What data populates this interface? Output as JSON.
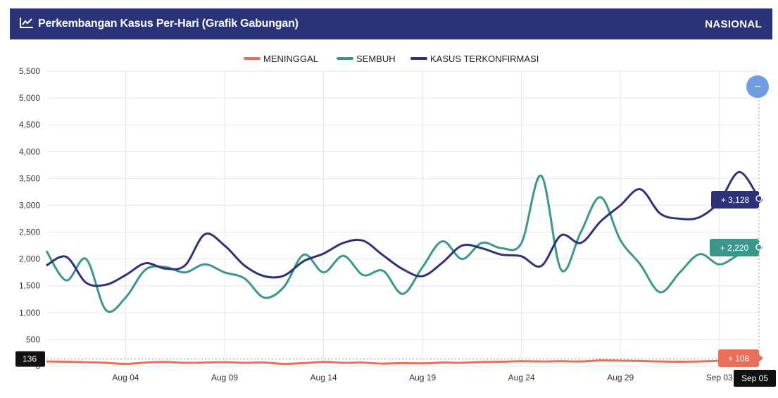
{
  "header": {
    "title": "Perkembangan Kasus Per-Hari (Grafik Gabungan)",
    "region": "NASIONAL",
    "icon": "chart-line-icon"
  },
  "colors": {
    "header_bg": "#2b3478",
    "meninggal": "#e8705a",
    "sembuh": "#3b968b",
    "terkonfirmasi": "#2e3279",
    "zoom_button": "#6f9be0"
  },
  "zoom_button": {
    "icon": "minus-icon",
    "label": "−"
  },
  "chart_data": {
    "type": "line",
    "x": [
      "Jul 31",
      "Aug 01",
      "Aug 02",
      "Aug 03",
      "Aug 04",
      "Aug 05",
      "Aug 06",
      "Aug 07",
      "Aug 08",
      "Aug 09",
      "Aug 10",
      "Aug 11",
      "Aug 12",
      "Aug 13",
      "Aug 14",
      "Aug 15",
      "Aug 16",
      "Aug 17",
      "Aug 18",
      "Aug 19",
      "Aug 20",
      "Aug 21",
      "Aug 22",
      "Aug 23",
      "Aug 24",
      "Aug 25",
      "Aug 26",
      "Aug 27",
      "Aug 28",
      "Aug 29",
      "Aug 30",
      "Aug 31",
      "Sep 01",
      "Sep 02",
      "Sep 03",
      "Sep 04",
      "Sep 05"
    ],
    "xticks": [
      "Aug 04",
      "Aug 09",
      "Aug 14",
      "Aug 19",
      "Aug 24",
      "Aug 29",
      "Sep 03"
    ],
    "yticks": [
      "5,500",
      "5,000",
      "4,500",
      "4,000",
      "3,500",
      "3,000",
      "2,500",
      "2,000",
      "1,500",
      "1,000",
      "500",
      "0"
    ],
    "ylim": [
      0,
      5500
    ],
    "grid": true,
    "legend_position": "top-center",
    "series": [
      {
        "name": "MENINGGAL",
        "key": "meninggal",
        "values": [
          90,
          85,
          75,
          65,
          45,
          70,
          80,
          65,
          70,
          75,
          65,
          70,
          45,
          60,
          80,
          65,
          70,
          50,
          60,
          55,
          70,
          65,
          80,
          85,
          95,
          90,
          95,
          90,
          110,
          105,
          100,
          90,
          85,
          90,
          105,
          136,
          108
        ]
      },
      {
        "name": "SEMBUH",
        "key": "sembuh",
        "values": [
          2150,
          1600,
          2000,
          1050,
          1280,
          1800,
          1850,
          1750,
          1900,
          1750,
          1640,
          1280,
          1480,
          2080,
          1750,
          2060,
          1700,
          1780,
          1350,
          1850,
          2330,
          2000,
          2300,
          2200,
          2300,
          3550,
          1800,
          2500,
          3150,
          2350,
          1900,
          1380,
          1750,
          2090,
          1900,
          2080,
          2220
        ]
      },
      {
        "name": "KASUS TERKONFIRMASI",
        "key": "terkonfirmasi",
        "values": [
          1880,
          2040,
          1560,
          1520,
          1700,
          1920,
          1820,
          1880,
          2460,
          2250,
          1880,
          1680,
          1690,
          1960,
          2100,
          2300,
          2340,
          2070,
          1810,
          1680,
          1930,
          2250,
          2200,
          2080,
          2050,
          1870,
          2440,
          2300,
          2700,
          3000,
          3300,
          2850,
          2750,
          2780,
          3070,
          3620,
          3128
        ]
      }
    ],
    "hover": {
      "x_label": "Sep 05",
      "y_label": "136",
      "tooltips": [
        {
          "key": "terkonfirmasi",
          "text": "+ 3,128"
        },
        {
          "key": "sembuh",
          "text": "+ 2,220"
        },
        {
          "key": "meninggal",
          "text": "+ 108"
        }
      ]
    }
  }
}
